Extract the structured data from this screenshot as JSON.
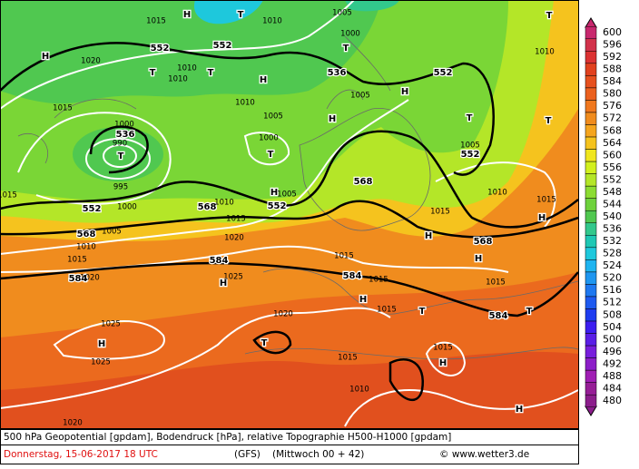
{
  "map": {
    "title": "500 hPa Geopotential [gpdam], Bodendruck [hPa], relative Topographie H500-H1000 [gpdam]",
    "date": "Donnerstag, 15-06-2017  18 UTC",
    "model": "(GFS)",
    "run": "(Mittwoch 00 + 42)",
    "credit": "© www.wetter3.de",
    "legend": {
      "values": [
        600,
        596,
        592,
        588,
        584,
        580,
        576,
        572,
        568,
        564,
        560,
        556,
        552,
        548,
        544,
        540,
        536,
        532,
        528,
        524,
        520,
        516,
        512,
        508,
        504,
        500,
        496,
        492,
        488,
        484,
        480
      ],
      "colors": [
        "#c8286e",
        "#d2324b",
        "#dc3232",
        "#e1411e",
        "#e6501e",
        "#eb601e",
        "#f0781e",
        "#f08c1e",
        "#f5a51e",
        "#f5c31e",
        "#f0e61e",
        "#d2f01e",
        "#b4e628",
        "#8cdc32",
        "#6ed23c",
        "#50c850",
        "#32c88c",
        "#1ec8b4",
        "#1ec8dc",
        "#1eb4f0",
        "#1e96f0",
        "#1e78f0",
        "#1e5af0",
        "#1e3cf0",
        "#3c1ef0",
        "#5a1ee6",
        "#781edc",
        "#8c1ec8",
        "#a01eb4",
        "#961e96",
        "#8c1e8c"
      ]
    },
    "labels": [
      "552",
      "552",
      "536",
      "552",
      "552",
      "536",
      "552",
      "568",
      "568",
      "552",
      "568",
      "568",
      "584",
      "584",
      "584",
      "584",
      "H",
      "H",
      "T",
      "H",
      "T",
      "T",
      "H",
      "T",
      "H",
      "T",
      "T",
      "T",
      "H",
      "H",
      "H",
      "H",
      "H",
      "H",
      "T",
      "T",
      "T",
      "T",
      "H",
      "H",
      "H",
      "T",
      "T",
      "1015",
      "1010",
      "1005",
      "1000",
      "1020",
      "1010",
      "1010",
      "1015",
      "1010",
      "1005",
      "1005",
      "1000",
      "1000",
      "990",
      "995",
      "1000",
      "1005",
      "1010",
      "1015",
      "1020",
      "1005",
      "1010",
      "1015",
      "1020",
      "1025",
      "1015",
      "1015",
      "1015",
      "1010",
      "1015",
      "1015",
      "1020",
      "1015",
      "1025",
      "1025",
      "1015",
      "1010",
      "1015",
      "1020",
      "1005",
      "1010",
      "1015"
    ]
  }
}
